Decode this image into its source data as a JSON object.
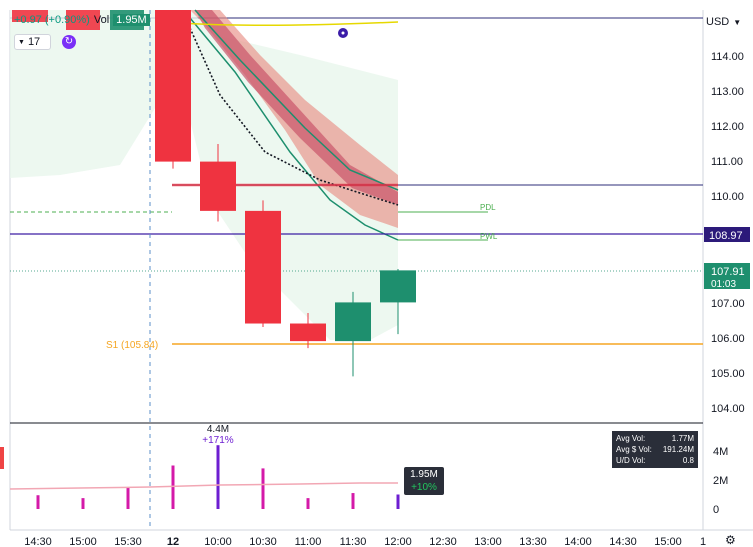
{
  "header": {
    "change": "+0.97 (+0.90%)",
    "vol_label": "Vol",
    "vol_value": "1.95M",
    "interval": "17",
    "currency": "USD"
  },
  "price_axis": {
    "ticks": [
      "114.00",
      "113.00",
      "112.00",
      "111.00",
      "110.00",
      "109.00",
      "108.00",
      "107.00",
      "106.00",
      "105.00",
      "104.00"
    ],
    "last_price": "107.91",
    "countdown": "01:03",
    "line_price": "108.97"
  },
  "volume_axis": {
    "ticks": [
      "4M",
      "2M",
      "0"
    ]
  },
  "time_axis": {
    "ticks": [
      "14:30",
      "15:00",
      "15:30",
      "12",
      "10:00",
      "10:30",
      "11:00",
      "11:30",
      "12:00",
      "12:30",
      "13:00",
      "13:30",
      "14:00",
      "14:30",
      "15:00",
      "1"
    ]
  },
  "levels": {
    "s1": "S1 (105.84)",
    "pdl": "PDL",
    "pwl": "PWL"
  },
  "volume_annotation": {
    "value": "4.4M",
    "pct": "+171%"
  },
  "volume_tag": {
    "value": "1.95M",
    "pct": "+10%"
  },
  "stats": [
    {
      "label": "Avg Vol:",
      "value": "1.77M"
    },
    {
      "label": "Avg $ Vol:",
      "value": "191.24M"
    },
    {
      "label": "U/D Vol:",
      "value": "0.8"
    }
  ],
  "colors": {
    "up": "#1e8f6e",
    "down": "#ef3340",
    "volume_purple": "#6d1ed1",
    "volume_magenta": "#d41aa8",
    "level_orange": "#f5a623",
    "band_red": "#e88f85"
  },
  "chart_data": {
    "type": "candlestick",
    "candles": [
      {
        "t": "09:30",
        "o": 115.6,
        "h": 115.9,
        "l": 110.8,
        "c": 111.0
      },
      {
        "t": "10:00",
        "o": 111.0,
        "h": 111.5,
        "l": 109.3,
        "c": 109.6
      },
      {
        "t": "10:30",
        "o": 109.6,
        "h": 109.9,
        "l": 106.3,
        "c": 106.4
      },
      {
        "t": "11:00",
        "o": 106.4,
        "h": 106.7,
        "l": 105.7,
        "c": 105.9
      },
      {
        "t": "11:30",
        "o": 105.9,
        "h": 107.3,
        "l": 104.9,
        "c": 107.0
      },
      {
        "t": "12:00",
        "o": 107.0,
        "h": 107.95,
        "l": 106.1,
        "c": 107.91
      }
    ],
    "volume_bars": [
      {
        "t": "14:30",
        "v": 0.95,
        "color": "magenta"
      },
      {
        "t": "15:00",
        "v": 0.75,
        "color": "magenta"
      },
      {
        "t": "15:30",
        "v": 1.45,
        "color": "magenta"
      },
      {
        "t": "16:00",
        "v": 3.1,
        "color": "purple"
      },
      {
        "t": "09:30",
        "v": 3.0,
        "color": "magenta"
      },
      {
        "t": "10:00",
        "v": 4.4,
        "color": "purple"
      },
      {
        "t": "10:30",
        "v": 2.8,
        "color": "magenta"
      },
      {
        "t": "11:00",
        "v": 0.75,
        "color": "magenta"
      },
      {
        "t": "11:30",
        "v": 1.1,
        "color": "magenta"
      },
      {
        "t": "12:00",
        "v": 1.0,
        "color": "purple"
      },
      {
        "t": "12:10",
        "v": 1.0,
        "color": "purple"
      }
    ],
    "avg_volume_line": [
      0.65,
      0.7,
      0.8,
      0.95,
      1.02,
      1.05,
      1.07
    ],
    "hlines": [
      {
        "price": 108.97,
        "label": "108.97",
        "color": "purple"
      },
      {
        "price": 105.84,
        "label": "S1 (105.84)",
        "color": "orange"
      }
    ],
    "ylim": [
      103.6,
      115.3
    ],
    "volume_ylim": [
      0,
      5
    ]
  }
}
